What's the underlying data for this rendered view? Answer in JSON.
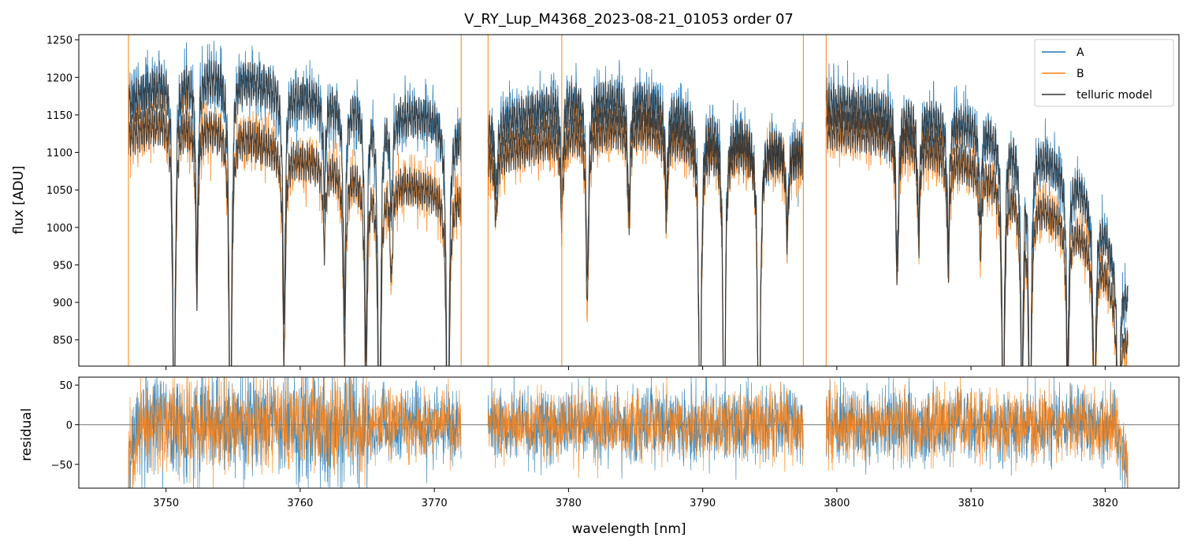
{
  "figure": {
    "title": "V_RY_Lup_M4368_2023-08-21_01053  order 07"
  },
  "colors": {
    "A": "#1f77b4",
    "B": "#ff7f0e",
    "telluric": "#333333",
    "zero_line": "#666666"
  },
  "chart_data": [
    {
      "type": "line",
      "panel": "flux",
      "title": "V_RY_Lup_M4368_2023-08-21_01053  order 07",
      "xlabel": "",
      "ylabel": "flux [ADU]",
      "xlim": [
        3743.5,
        3825.5
      ],
      "ylim": [
        815,
        1257
      ],
      "yticks": [
        850,
        900,
        950,
        1000,
        1050,
        1100,
        1150,
        1200,
        1250
      ],
      "xticks": [
        3750,
        3760,
        3770,
        3780,
        3790,
        3800,
        3810,
        3820
      ],
      "grid": false,
      "legend": "top-right",
      "legend_entries": [
        "A",
        "B",
        "telluric model"
      ],
      "segments": [
        [
          3747.2,
          3772.0
        ],
        [
          3774.0,
          3797.5
        ],
        [
          3799.2,
          3821.7
        ]
      ],
      "series": [
        {
          "name": "A",
          "continuum_x": [
            3747.2,
            3750,
            3755,
            3760,
            3765,
            3770,
            3772,
            3774,
            3780,
            3785,
            3790,
            3795,
            3797.5,
            3799.2,
            3805,
            3810,
            3815,
            3818,
            3820,
            3821.7
          ],
          "continuum_y": [
            1195,
            1228,
            1235,
            1205,
            1190,
            1175,
            1150,
            1160,
            1200,
            1200,
            1170,
            1140,
            1130,
            1195,
            1180,
            1165,
            1130,
            1085,
            1020,
            930
          ]
        },
        {
          "name": "B",
          "continuum_x": [
            3747.2,
            3750,
            3755,
            3760,
            3765,
            3768,
            3770,
            3772,
            3774,
            3780,
            3785,
            3790,
            3795,
            3797.5,
            3799.2,
            3805,
            3810,
            3815,
            3818,
            3820,
            3821.7
          ],
          "continuum_y": [
            1150,
            1175,
            1158,
            1120,
            1095,
            1085,
            1075,
            1065,
            1120,
            1155,
            1165,
            1140,
            1130,
            1120,
            1160,
            1150,
            1110,
            1060,
            1020,
            970,
            870
          ]
        },
        {
          "name": "telluric model",
          "line_centers": [
            3750.6,
            3752.3,
            3754.8,
            3758.8,
            3761.8,
            3763.3,
            3764.9,
            3765.9,
            3766.8,
            3771.0,
            3774.6,
            3779.5,
            3781.4,
            3784.5,
            3787.3,
            3789.8,
            3791.6,
            3794.2,
            3796.3,
            3804.5,
            3806.1,
            3808.3,
            3810.7,
            3812.4,
            3813.8,
            3814.4,
            3817.2,
            3819.2,
            3821.0
          ],
          "line_depths": [
            0.42,
            0.2,
            0.45,
            0.26,
            0.1,
            0.23,
            0.28,
            0.45,
            0.12,
            0.45,
            0.08,
            0.1,
            0.21,
            0.12,
            0.1,
            0.4,
            0.38,
            0.45,
            0.1,
            0.18,
            0.12,
            0.14,
            0.1,
            0.36,
            0.3,
            0.38,
            0.25,
            0.3,
            0.3
          ]
        }
      ]
    },
    {
      "type": "line",
      "panel": "residual",
      "xlabel": "wavelength [nm]",
      "ylabel": "residual",
      "xlim": [
        3743.5,
        3825.5
      ],
      "ylim": [
        -80,
        60
      ],
      "yticks": [
        -50,
        0,
        50
      ],
      "xticks": [
        3750,
        3760,
        3770,
        3780,
        3790,
        3800,
        3810,
        3820
      ],
      "grid": false,
      "reference_line": 0,
      "series": [
        {
          "name": "A",
          "noise_amplitude": 25
        },
        {
          "name": "B",
          "noise_amplitude": 22
        }
      ]
    }
  ]
}
